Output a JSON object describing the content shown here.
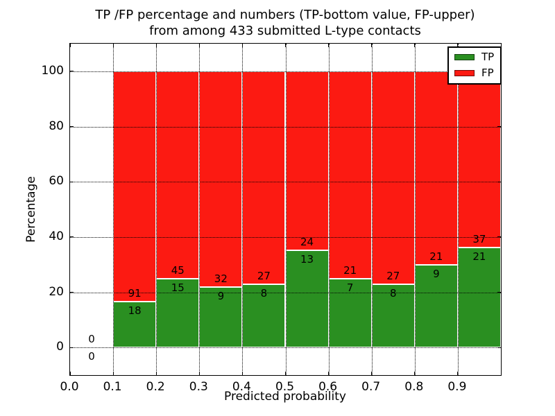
{
  "title_line1": "TP /FP percentage and numbers (TP-bottom value, FP-upper)",
  "title_line2": "from among 433 submitted L-type contacts",
  "chart_data": {
    "type": "bar",
    "stacked": true,
    "normalized_to_percent": true,
    "title": "TP /FP percentage and numbers (TP-bottom value, FP-upper) from among 433 submitted L-type contacts",
    "xlabel": "Predicted probability",
    "ylabel": "Percentage",
    "xlim": [
      0.0,
      1.0
    ],
    "ylim": [
      -10,
      110
    ],
    "xticks": [
      "0.0",
      "0.1",
      "0.2",
      "0.3",
      "0.4",
      "0.5",
      "0.6",
      "0.7",
      "0.8",
      "0.9"
    ],
    "xtick_values": [
      0.0,
      0.1,
      0.2,
      0.3,
      0.4,
      0.5,
      0.6,
      0.7,
      0.8,
      0.9
    ],
    "yticks": [
      "0",
      "20",
      "40",
      "60",
      "80",
      "100"
    ],
    "ytick_values": [
      0,
      20,
      40,
      60,
      80,
      100
    ],
    "grid": "dotted, both axes",
    "colors": {
      "tp": "#2a8f21",
      "fp": "#fc1a12",
      "bar_edge": "#ffffff",
      "axes": "#000000"
    },
    "legend": {
      "position": "upper right",
      "entries": [
        {
          "label": "TP",
          "color": "#2a8f21"
        },
        {
          "label": "FP",
          "color": "#fc1a12"
        }
      ]
    },
    "total_contacts": 433,
    "bins": [
      {
        "range": [
          0.0,
          0.1
        ],
        "tp": 0,
        "fp": 0,
        "tp_pct": 0.0,
        "fp_pct": 0.0
      },
      {
        "range": [
          0.1,
          0.2
        ],
        "tp": 18,
        "fp": 91,
        "tp_pct": 16.51,
        "fp_pct": 83.49
      },
      {
        "range": [
          0.2,
          0.3
        ],
        "tp": 15,
        "fp": 45,
        "tp_pct": 25.0,
        "fp_pct": 75.0
      },
      {
        "range": [
          0.3,
          0.4
        ],
        "tp": 9,
        "fp": 32,
        "tp_pct": 21.95,
        "fp_pct": 78.05
      },
      {
        "range": [
          0.4,
          0.5
        ],
        "tp": 8,
        "fp": 27,
        "tp_pct": 22.86,
        "fp_pct": 77.14
      },
      {
        "range": [
          0.5,
          0.6
        ],
        "tp": 13,
        "fp": 24,
        "tp_pct": 35.14,
        "fp_pct": 64.86
      },
      {
        "range": [
          0.6,
          0.7
        ],
        "tp": 7,
        "fp": 21,
        "tp_pct": 25.0,
        "fp_pct": 75.0
      },
      {
        "range": [
          0.7,
          0.8
        ],
        "tp": 8,
        "fp": 27,
        "tp_pct": 22.86,
        "fp_pct": 77.14
      },
      {
        "range": [
          0.8,
          0.9
        ],
        "tp": 9,
        "fp": 21,
        "tp_pct": 30.0,
        "fp_pct": 70.0
      },
      {
        "range": [
          0.9,
          1.0
        ],
        "tp": 21,
        "fp": 37,
        "tp_pct": 36.21,
        "fp_pct": 63.79
      }
    ]
  }
}
